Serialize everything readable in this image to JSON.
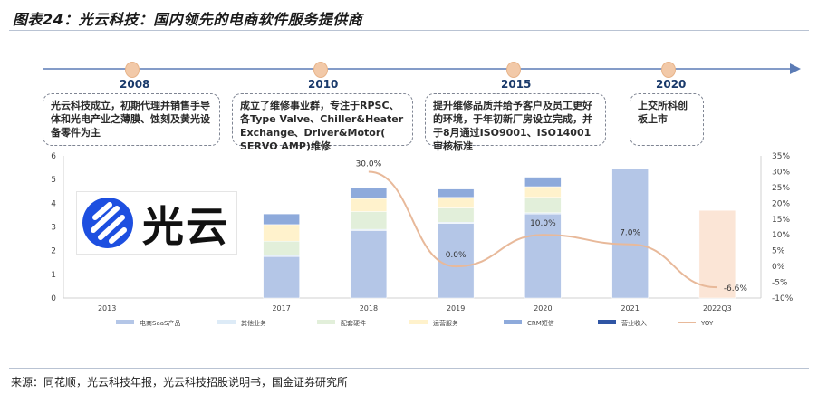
{
  "title": "图表24：光云科技：国内领先的电商软件服务提供商",
  "source": "来源：同花顺，光云科技年报，光云科技招股说明书，国金证券研究所",
  "timeline": [
    {
      "year": "2008",
      "text": "光云科技成立，初期代理并销售手导体和光电产业之薄膜、蚀刻及黄光设备零件为主"
    },
    {
      "year": "2010",
      "text": "成立了维修事业群，专注于RPSC、各Type Valve、Chiller&Heater Exchange、Driver&Motor( SERVO AMP)维修"
    },
    {
      "year": "2015",
      "text": "提升维修品质并给予客户及员工更好的环境，于年初新厂房设立完成，并于8月通过ISO9001、ISO14001审核标准"
    },
    {
      "year": "2020",
      "text": "上交所科创板上市"
    }
  ],
  "logo": {
    "text": "光云"
  },
  "colors": {
    "saas": "#b4c6e7",
    "other": "#ddebf7",
    "hardware": "#e2efda",
    "ops": "#fff2cc",
    "crm": "#8eaadb",
    "revenue": "#2f55a4",
    "yoy": "#e8b99a",
    "bar2022": "#fbe5d6"
  },
  "chart_data": {
    "type": "bar",
    "categories": [
      "2013",
      "",
      "2017",
      "2018",
      "2019",
      "2020",
      "2021",
      "2022Q3"
    ],
    "series": [
      {
        "name": "电商SaaS产品",
        "values": [
          0,
          0,
          1.75,
          2.85,
          3.15,
          3.55,
          5.45,
          3.7
        ]
      },
      {
        "name": "其他业务",
        "values": [
          0,
          0,
          0.05,
          0.05,
          0.05,
          0.05,
          0,
          0
        ]
      },
      {
        "name": "配套硬件",
        "values": [
          0,
          0,
          0.6,
          0.75,
          0.6,
          0.65,
          0,
          0
        ]
      },
      {
        "name": "运营服务",
        "values": [
          0,
          0,
          0.7,
          0.55,
          0.45,
          0.45,
          0,
          0
        ]
      },
      {
        "name": "CRM短信",
        "values": [
          0,
          0,
          0.45,
          0.45,
          0.35,
          0.4,
          0,
          0
        ]
      },
      {
        "name": "营业收入",
        "values": [
          0,
          0,
          0,
          0,
          0,
          0,
          0,
          0
        ]
      },
      {
        "name": "YOY",
        "axis": "right",
        "x": [
          "2018",
          "2019",
          "2020",
          "2021",
          "2022Q3"
        ],
        "values": [
          30.0,
          0.0,
          10.0,
          7.0,
          -6.6
        ]
      }
    ],
    "data_labels": [
      "30.0%",
      "0.0%",
      "10.0%",
      "7.0%",
      "-6.6%"
    ],
    "ylim": [
      0,
      6
    ],
    "yticks": [
      "0",
      "1",
      "2",
      "3",
      "4",
      "5",
      "6"
    ],
    "y2lim": [
      -10,
      35
    ],
    "y2ticks": [
      "-10%",
      "-5%",
      "0%",
      "5%",
      "10%",
      "15%",
      "20%",
      "25%",
      "30%",
      "35%"
    ],
    "legend_position": "bottom",
    "grid": false
  }
}
